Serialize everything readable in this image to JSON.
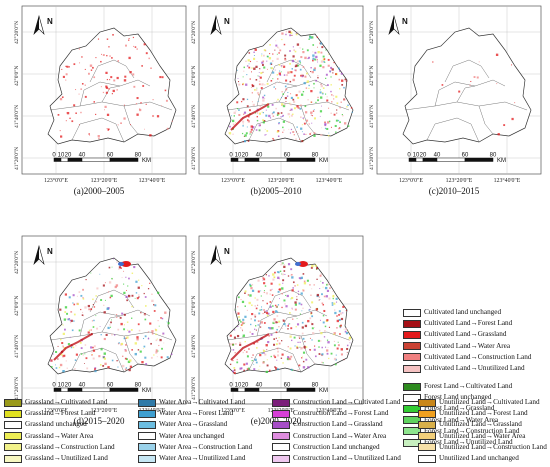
{
  "map": {
    "north_label": "N",
    "lat_labels": [
      "42°20'0\"N",
      "42°0'0\"N",
      "41°40'0\"N",
      "41°20'0\"N"
    ],
    "lon_labels": [
      "123°0'0\"E",
      "123°20'0\"E",
      "123°40'0\"E"
    ],
    "scale_ticks": [
      "0",
      "10",
      "20",
      "40",
      "60",
      "80"
    ],
    "scale_unit": "KM"
  },
  "panels": [
    {
      "caption": "(a)2000–2005",
      "density": 0.25,
      "hue": "red"
    },
    {
      "caption": "(b)2005–2010",
      "density": 1.0,
      "hue": "mix"
    },
    {
      "caption": "(c)2010–2015",
      "density": 0.03,
      "hue": "red"
    },
    {
      "caption": "(d)2015–2020",
      "density": 0.6,
      "hue": "mix"
    },
    {
      "caption": "(e)2000–2020",
      "density": 1.0,
      "hue": "mix"
    }
  ],
  "legend": {
    "cultivated": [
      {
        "label": "Cultivated land unchanged",
        "color": "#ffffff"
      },
      {
        "label": "Cultivated Land→Forest Land",
        "color": "#a50f15"
      },
      {
        "label": "Cultivated Land→Grassland",
        "color": "#e31a1c"
      },
      {
        "label": "Cultivated Land→Water Area",
        "color": "#cb4335"
      },
      {
        "label": "Cultivated Land→Construction Land",
        "color": "#f08080"
      },
      {
        "label": "Cultivated Land→Unutilized Land",
        "color": "#f5c2c2"
      }
    ],
    "forest": [
      {
        "label": "Forest Land→Cultivated Land",
        "color": "#2e8b1f"
      },
      {
        "label": "Forest Land unchanged",
        "color": "#ffffff"
      },
      {
        "label": "Forest Land→Grassland",
        "color": "#33cc33"
      },
      {
        "label": "Forest Land→Water Area",
        "color": "#5fd35f"
      },
      {
        "label": "Forest Land→Construction Land",
        "color": "#8ee58e"
      },
      {
        "label": "Forest Land→Unutilized Land",
        "color": "#c8f0c0"
      }
    ],
    "grassland": [
      {
        "label": "Grassland→Cultivated Land",
        "color": "#9a9a1a"
      },
      {
        "label": "Grassland→Forest Land",
        "color": "#e0e020"
      },
      {
        "label": "Grassland unchanged",
        "color": "#ffffff"
      },
      {
        "label": "Grassland→Water Area",
        "color": "#eeee55"
      },
      {
        "label": "Grassland→Construction Land",
        "color": "#f2f28a"
      },
      {
        "label": "Grassland→Unutilized Land",
        "color": "#f7f7c0"
      }
    ],
    "water": [
      {
        "label": "Water Area→Cultivated Land",
        "color": "#2f7aa8"
      },
      {
        "label": "Water Area→Forest Land",
        "color": "#3f9fd0"
      },
      {
        "label": "Water Area→Grassland",
        "color": "#6cbde0"
      },
      {
        "label": "Water Area unchanged",
        "color": "#ffffff"
      },
      {
        "label": "Water Area→Construction Land",
        "color": "#9ad2ea"
      },
      {
        "label": "Water Area→Unutilized Land",
        "color": "#c6e7f4"
      }
    ],
    "construction": [
      {
        "label": "Construction Land→Cultivated Land",
        "color": "#7b1f7a"
      },
      {
        "label": "Construction Land→Forest Land",
        "color": "#d63fd6"
      },
      {
        "label": "Construction Land→Grassland",
        "color": "#a64dc6"
      },
      {
        "label": "Construction Land→Water Area",
        "color": "#e08ee0"
      },
      {
        "label": "Construction Land unchanged",
        "color": "#ffffff"
      },
      {
        "label": "Construction Land→Unutilized Land",
        "color": "#efc8ef"
      }
    ],
    "unutilized": [
      {
        "label": "Unutilized Land→Cultivated Land",
        "color": "#c8861a"
      },
      {
        "label": "Unutilized Land→Forest Land",
        "color": "#f0a020"
      },
      {
        "label": "Unutilized Land→Grassland",
        "color": "#d9b04a"
      },
      {
        "label": "Unutilized Land→Water Area",
        "color": "#f2cf7a"
      },
      {
        "label": "Unutilized Land→Construction Land",
        "color": "#f7e0a8"
      },
      {
        "label": "Unutilized Land unchanged",
        "color": "#ffffff"
      }
    ]
  }
}
